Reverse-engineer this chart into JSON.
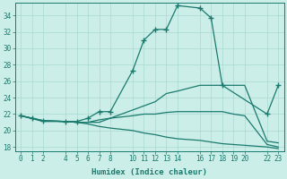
{
  "xlabel": "Humidex (Indice chaleur)",
  "background_color": "#cceee8",
  "grid_color": "#aad8d2",
  "line_color": "#1a7a6e",
  "xlim": [
    -0.5,
    23.5
  ],
  "ylim": [
    17.5,
    35.5
  ],
  "xticks": [
    0,
    1,
    2,
    4,
    5,
    6,
    7,
    8,
    10,
    11,
    12,
    13,
    14,
    16,
    17,
    18,
    19,
    20,
    22,
    23
  ],
  "yticks": [
    18,
    20,
    22,
    24,
    26,
    28,
    30,
    32,
    34
  ],
  "lines": [
    {
      "x": [
        0,
        1,
        2,
        4,
        5,
        6,
        7,
        8,
        10,
        11,
        12,
        13,
        14,
        16,
        17,
        18,
        22,
        23
      ],
      "y": [
        21.8,
        21.5,
        21.2,
        21.1,
        21.1,
        21.5,
        22.3,
        22.3,
        27.3,
        31.0,
        32.3,
        32.3,
        35.2,
        34.9,
        33.7,
        25.5,
        22.0,
        25.5
      ],
      "marker": true
    },
    {
      "x": [
        0,
        2,
        4,
        5,
        6,
        7,
        8,
        10,
        11,
        12,
        13,
        14,
        16,
        17,
        18,
        19,
        20,
        22,
        23
      ],
      "y": [
        21.8,
        21.2,
        21.1,
        21.0,
        21.0,
        21.0,
        21.5,
        22.5,
        23.0,
        23.5,
        24.5,
        24.8,
        25.5,
        25.5,
        25.5,
        25.5,
        25.5,
        18.7,
        18.5
      ],
      "marker": false
    },
    {
      "x": [
        0,
        2,
        4,
        5,
        6,
        7,
        8,
        10,
        11,
        12,
        13,
        14,
        16,
        17,
        18,
        19,
        20,
        22,
        23
      ],
      "y": [
        21.8,
        21.2,
        21.1,
        21.0,
        21.0,
        21.3,
        21.5,
        21.8,
        22.0,
        22.0,
        22.2,
        22.3,
        22.3,
        22.3,
        22.3,
        22.0,
        21.8,
        18.3,
        18.0
      ],
      "marker": false
    },
    {
      "x": [
        0,
        2,
        4,
        5,
        6,
        7,
        8,
        10,
        11,
        12,
        13,
        14,
        16,
        17,
        18,
        19,
        20,
        22,
        23
      ],
      "y": [
        21.8,
        21.1,
        21.1,
        21.0,
        20.8,
        20.5,
        20.3,
        20.0,
        19.7,
        19.5,
        19.2,
        19.0,
        18.8,
        18.6,
        18.4,
        18.3,
        18.2,
        18.0,
        17.8
      ],
      "marker": false
    }
  ]
}
